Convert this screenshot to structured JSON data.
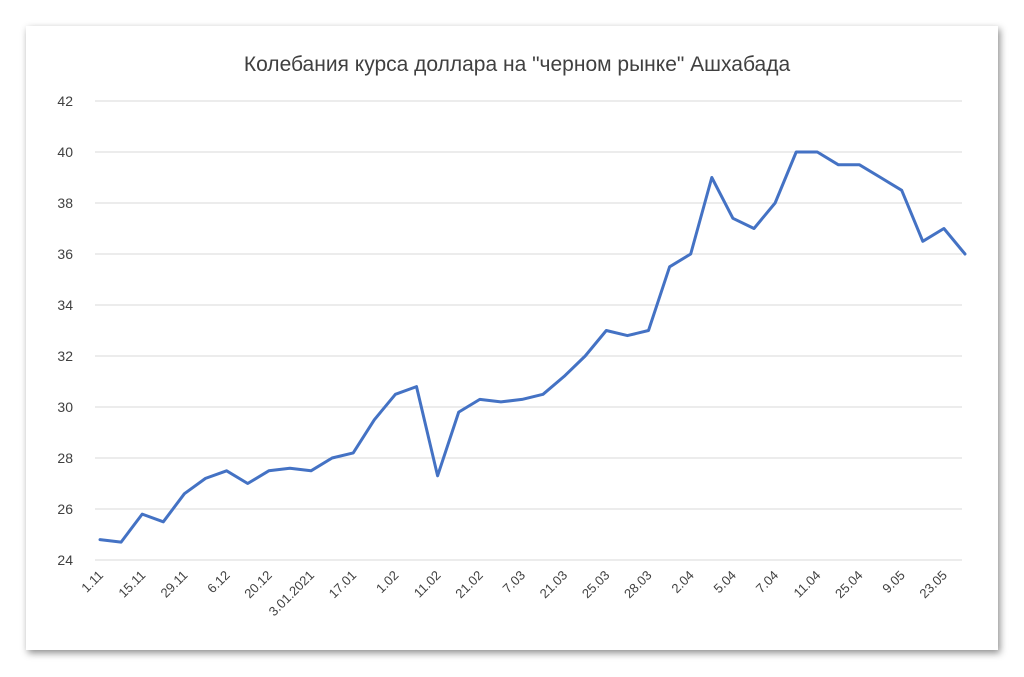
{
  "chart_data": {
    "type": "line",
    "title": "Колебания курса доллара на \"черном рынке\" Ашхабада",
    "xlabel": "",
    "ylabel": "",
    "ylim": [
      24,
      42
    ],
    "yticks": [
      24,
      26,
      28,
      30,
      32,
      34,
      36,
      38,
      40,
      42
    ],
    "grid": true,
    "legend": "none",
    "series_color": "#4472c4",
    "tick_labels": [
      "1.11",
      "15.11",
      "29.11",
      "6.12",
      "20.12",
      "3.01.2021",
      "17.01",
      "1.02",
      "11.02",
      "21.02",
      "7.03",
      "21.03",
      "25.03",
      "28.03",
      "2.04",
      "5.04",
      "7.04",
      "11.04",
      "25.04",
      "9.05",
      "23.05"
    ],
    "values": [
      24.8,
      24.7,
      25.8,
      25.5,
      26.6,
      27.2,
      27.5,
      27.0,
      27.5,
      27.6,
      27.5,
      28.0,
      28.2,
      29.5,
      30.5,
      30.8,
      27.3,
      29.8,
      30.3,
      30.2,
      30.3,
      30.5,
      31.2,
      32.0,
      33.0,
      32.8,
      33.0,
      35.5,
      36.0,
      39.0,
      37.4,
      37.0,
      38.0,
      40.0,
      40.0,
      39.5,
      39.5,
      39.0,
      38.5,
      36.5,
      37.0,
      36.0
    ]
  }
}
